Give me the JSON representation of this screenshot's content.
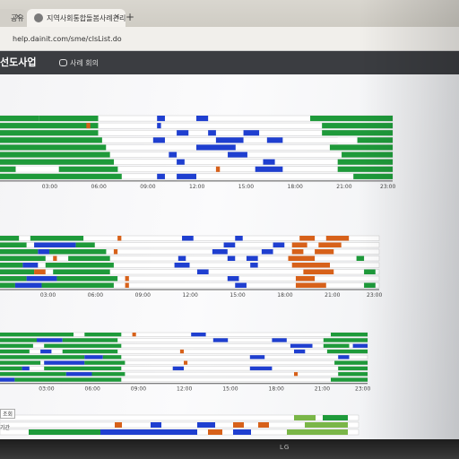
{
  "browser": {
    "tabs": [
      {
        "label": "공유"
      },
      {
        "label": "지역사회통합돌봄사례관리공유"
      }
    ],
    "url": "help.dainit.com/sme/clsList.do"
  },
  "site": {
    "brand": "선도사업",
    "nav_item": "사례 회의"
  },
  "side_labels": {
    "label1": "",
    "label2": "조회",
    "label3": "기간"
  },
  "monitor": {
    "brand": "LG"
  },
  "colors": {
    "green": "#1e9a3a",
    "blue": "#1f3fd0",
    "orange": "#d7611a",
    "lightgreen": "#7ab648"
  },
  "chart_data": [
    {
      "type": "timeline",
      "x_ticks": [
        "03:00",
        "06:00",
        "09:00",
        "12:00",
        "15:00",
        "18:00",
        "21:00",
        "23:00"
      ],
      "rows": [
        [
          [
            "g",
            0,
            0.1
          ],
          [
            "g",
            0.1,
            0.25
          ],
          [
            "b",
            0.4,
            0.42
          ],
          [
            "b",
            0.5,
            0.53
          ],
          [
            "g",
            0.79,
            1
          ]
        ],
        [
          [
            "g",
            0,
            0.25
          ],
          [
            "o",
            0.22,
            0.23
          ],
          [
            "b",
            0.4,
            0.41
          ],
          [
            "g",
            0.82,
            1
          ]
        ],
        [
          [
            "g",
            0,
            0.25
          ],
          [
            "b",
            0.45,
            0.48
          ],
          [
            "b",
            0.53,
            0.55
          ],
          [
            "b",
            0.62,
            0.66
          ],
          [
            "g",
            0.82,
            1
          ]
        ],
        [
          [
            "g",
            0,
            0.26
          ],
          [
            "b",
            0.39,
            0.42
          ],
          [
            "b",
            0.55,
            0.62
          ],
          [
            "b",
            0.68,
            0.72
          ],
          [
            "w",
            0.86,
            0.91
          ],
          [
            "g",
            0.91,
            1
          ]
        ],
        [
          [
            "g",
            0,
            0.27
          ],
          [
            "b",
            0.5,
            0.6
          ],
          [
            "g",
            0.84,
            1
          ]
        ],
        [
          [
            "g",
            0,
            0.28
          ],
          [
            "b",
            0.43,
            0.45
          ],
          [
            "b",
            0.58,
            0.63
          ],
          [
            "g",
            0.87,
            1
          ]
        ],
        [
          [
            "g",
            0,
            0.29
          ],
          [
            "b",
            0.45,
            0.47
          ],
          [
            "b",
            0.67,
            0.7
          ],
          [
            "g",
            0.86,
            1
          ]
        ],
        [
          [
            "g",
            0,
            0.04
          ],
          [
            "w",
            0.04,
            0.15
          ],
          [
            "g",
            0.15,
            0.3
          ],
          [
            "o",
            0.55,
            0.56
          ],
          [
            "b",
            0.65,
            0.72
          ],
          [
            "g",
            0.86,
            1
          ]
        ],
        [
          [
            "g",
            0,
            0.31
          ],
          [
            "b",
            0.4,
            0.42
          ],
          [
            "b",
            0.45,
            0.5
          ],
          [
            "g",
            0.9,
            1
          ]
        ]
      ]
    },
    {
      "type": "timeline",
      "x_ticks": [
        "03:00",
        "06:00",
        "09:00",
        "12:00",
        "15:00",
        "18:00",
        "21:00",
        "23:00"
      ],
      "rows": [
        [
          [
            "g",
            0,
            0.05
          ],
          [
            "g",
            0.08,
            0.22
          ],
          [
            "o",
            0.31,
            0.32
          ],
          [
            "b",
            0.48,
            0.51
          ],
          [
            "b",
            0.62,
            0.64
          ],
          [
            "o",
            0.79,
            0.83
          ],
          [
            "o",
            0.86,
            0.92
          ]
        ],
        [
          [
            "g",
            0,
            0.07
          ],
          [
            "b",
            0.09,
            0.2
          ],
          [
            "g",
            0.2,
            0.25
          ],
          [
            "b",
            0.59,
            0.62
          ],
          [
            "b",
            0.72,
            0.75
          ],
          [
            "o",
            0.77,
            0.81
          ],
          [
            "o",
            0.84,
            0.9
          ]
        ],
        [
          [
            "g",
            0,
            0.1
          ],
          [
            "b",
            0.1,
            0.13
          ],
          [
            "g",
            0.13,
            0.28
          ],
          [
            "o",
            0.3,
            0.31
          ],
          [
            "b",
            0.56,
            0.6
          ],
          [
            "b",
            0.69,
            0.72
          ],
          [
            "o",
            0.77,
            0.8
          ],
          [
            "o",
            0.83,
            0.88
          ]
        ],
        [
          [
            "g",
            0,
            0.12
          ],
          [
            "o",
            0.14,
            0.15
          ],
          [
            "g",
            0.18,
            0.29
          ],
          [
            "b",
            0.47,
            0.49
          ],
          [
            "b",
            0.6,
            0.62
          ],
          [
            "b",
            0.65,
            0.68
          ],
          [
            "o",
            0.76,
            0.83
          ],
          [
            "g",
            0.94,
            0.96
          ]
        ],
        [
          [
            "g",
            0,
            0.06
          ],
          [
            "b",
            0.06,
            0.1
          ],
          [
            "g",
            0.12,
            0.3
          ],
          [
            "b",
            0.46,
            0.5
          ],
          [
            "b",
            0.66,
            0.68
          ],
          [
            "o",
            0.77,
            0.87
          ]
        ],
        [
          [
            "g",
            0,
            0.09
          ],
          [
            "o",
            0.09,
            0.12
          ],
          [
            "g",
            0.14,
            0.29
          ],
          [
            "b",
            0.52,
            0.55
          ],
          [
            "o",
            0.8,
            0.88
          ],
          [
            "g",
            0.96,
            0.99
          ]
        ],
        [
          [
            "g",
            0,
            0.07
          ],
          [
            "b",
            0.07,
            0.15
          ],
          [
            "g",
            0.15,
            0.31
          ],
          [
            "o",
            0.33,
            0.34
          ],
          [
            "b",
            0.6,
            0.63
          ],
          [
            "o",
            0.78,
            0.83
          ]
        ],
        [
          [
            "g",
            0,
            0.04
          ],
          [
            "b",
            0.04,
            0.11
          ],
          [
            "g",
            0.11,
            0.3
          ],
          [
            "o",
            0.33,
            0.34
          ],
          [
            "b",
            0.62,
            0.65
          ],
          [
            "o",
            0.78,
            0.86
          ],
          [
            "g",
            0.96,
            0.99
          ]
        ]
      ]
    },
    {
      "type": "timeline",
      "x_ticks": [
        "03:00",
        "06:00",
        "09:00",
        "12:00",
        "15:00",
        "18:00",
        "21:00",
        "23:00"
      ],
      "rows": [
        [
          [
            "g",
            0,
            0.2
          ],
          [
            "g",
            0.23,
            0.33
          ],
          [
            "o",
            0.36,
            0.37
          ],
          [
            "b",
            0.52,
            0.56
          ],
          [
            "g",
            0.9,
            1
          ]
        ],
        [
          [
            "g",
            0,
            0.1
          ],
          [
            "b",
            0.1,
            0.17
          ],
          [
            "g",
            0.17,
            0.32
          ],
          [
            "b",
            0.58,
            0.62
          ],
          [
            "b",
            0.74,
            0.78
          ],
          [
            "g",
            0.88,
            1
          ]
        ],
        [
          [
            "g",
            0,
            0.09
          ],
          [
            "g",
            0.12,
            0.33
          ],
          [
            "b",
            0.79,
            0.85
          ],
          [
            "g",
            0.88,
            0.95
          ],
          [
            "b",
            0.96,
            1
          ]
        ],
        [
          [
            "g",
            0,
            0.08
          ],
          [
            "b",
            0.11,
            0.14
          ],
          [
            "g",
            0.17,
            0.32
          ],
          [
            "o",
            0.49,
            0.5
          ],
          [
            "b",
            0.8,
            0.83
          ],
          [
            "g",
            0.89,
            1
          ]
        ],
        [
          [
            "g",
            0,
            0.23
          ],
          [
            "b",
            0.23,
            0.28
          ],
          [
            "g",
            0.28,
            0.33
          ],
          [
            "b",
            0.68,
            0.72
          ],
          [
            "b",
            0.92,
            0.95
          ]
        ],
        [
          [
            "g",
            0,
            0.11
          ],
          [
            "b",
            0.12,
            0.23
          ],
          [
            "g",
            0.23,
            0.34
          ],
          [
            "o",
            0.5,
            0.51
          ],
          [
            "g",
            0.91,
            1
          ]
        ],
        [
          [
            "g",
            0,
            0.06
          ],
          [
            "b",
            0.06,
            0.08
          ],
          [
            "g",
            0.12,
            0.33
          ],
          [
            "b",
            0.47,
            0.5
          ],
          [
            "b",
            0.68,
            0.74
          ],
          [
            "g",
            0.92,
            1
          ]
        ],
        [
          [
            "g",
            0,
            0.18
          ],
          [
            "b",
            0.18,
            0.25
          ],
          [
            "g",
            0.25,
            0.34
          ],
          [
            "o",
            0.8,
            0.81
          ],
          [
            "g",
            0.92,
            1
          ]
        ],
        [
          [
            "b",
            0,
            0.04
          ],
          [
            "g",
            0.04,
            0.33
          ],
          [
            "g",
            0.9,
            1
          ]
        ]
      ]
    },
    {
      "type": "timeline",
      "x_ticks": [],
      "rows": [
        [
          [
            "l",
            0.82,
            0.88
          ],
          [
            "g",
            0.9,
            0.97
          ]
        ],
        [
          [
            "o",
            0.32,
            0.34
          ],
          [
            "b",
            0.42,
            0.45
          ],
          [
            "b",
            0.55,
            0.6
          ],
          [
            "o",
            0.65,
            0.68
          ],
          [
            "o",
            0.72,
            0.75
          ],
          [
            "l",
            0.85,
            0.97
          ]
        ],
        [
          [
            "g",
            0.08,
            0.28
          ],
          [
            "b",
            0.28,
            0.55
          ],
          [
            "o",
            0.58,
            0.62
          ],
          [
            "b",
            0.65,
            0.7
          ],
          [
            "l",
            0.8,
            0.97
          ]
        ]
      ]
    }
  ]
}
